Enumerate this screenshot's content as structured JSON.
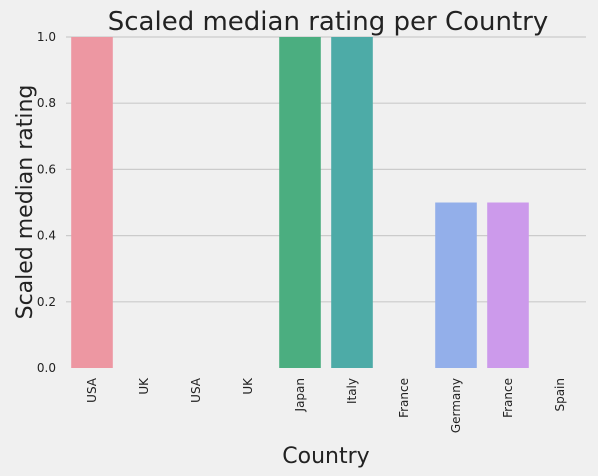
{
  "chart_data": {
    "type": "bar",
    "title": "Scaled median rating per Country",
    "xlabel": "Country",
    "ylabel": "Scaled median rating",
    "categories": [
      "USA",
      "UK",
      "USA",
      "UK",
      "Japan",
      "Italy",
      "France",
      "Germany",
      "France",
      "Spain"
    ],
    "values": [
      1.0,
      0.0,
      0.0,
      0.0,
      1.0,
      1.0,
      0.0,
      0.5,
      0.5,
      0.0
    ],
    "colors": [
      "#ED97A2",
      "#E9A07C",
      "#C9AE5D",
      "#A5B958",
      "#4BAE80",
      "#4DABA7",
      "#53ABC6",
      "#93AFEA",
      "#CC9AEB",
      "#EB92D0"
    ],
    "ylim": [
      0,
      1.0
    ],
    "yticks": [
      "0.0",
      "0.2",
      "0.4",
      "0.6",
      "0.8",
      "1.0"
    ],
    "grid": "y"
  }
}
